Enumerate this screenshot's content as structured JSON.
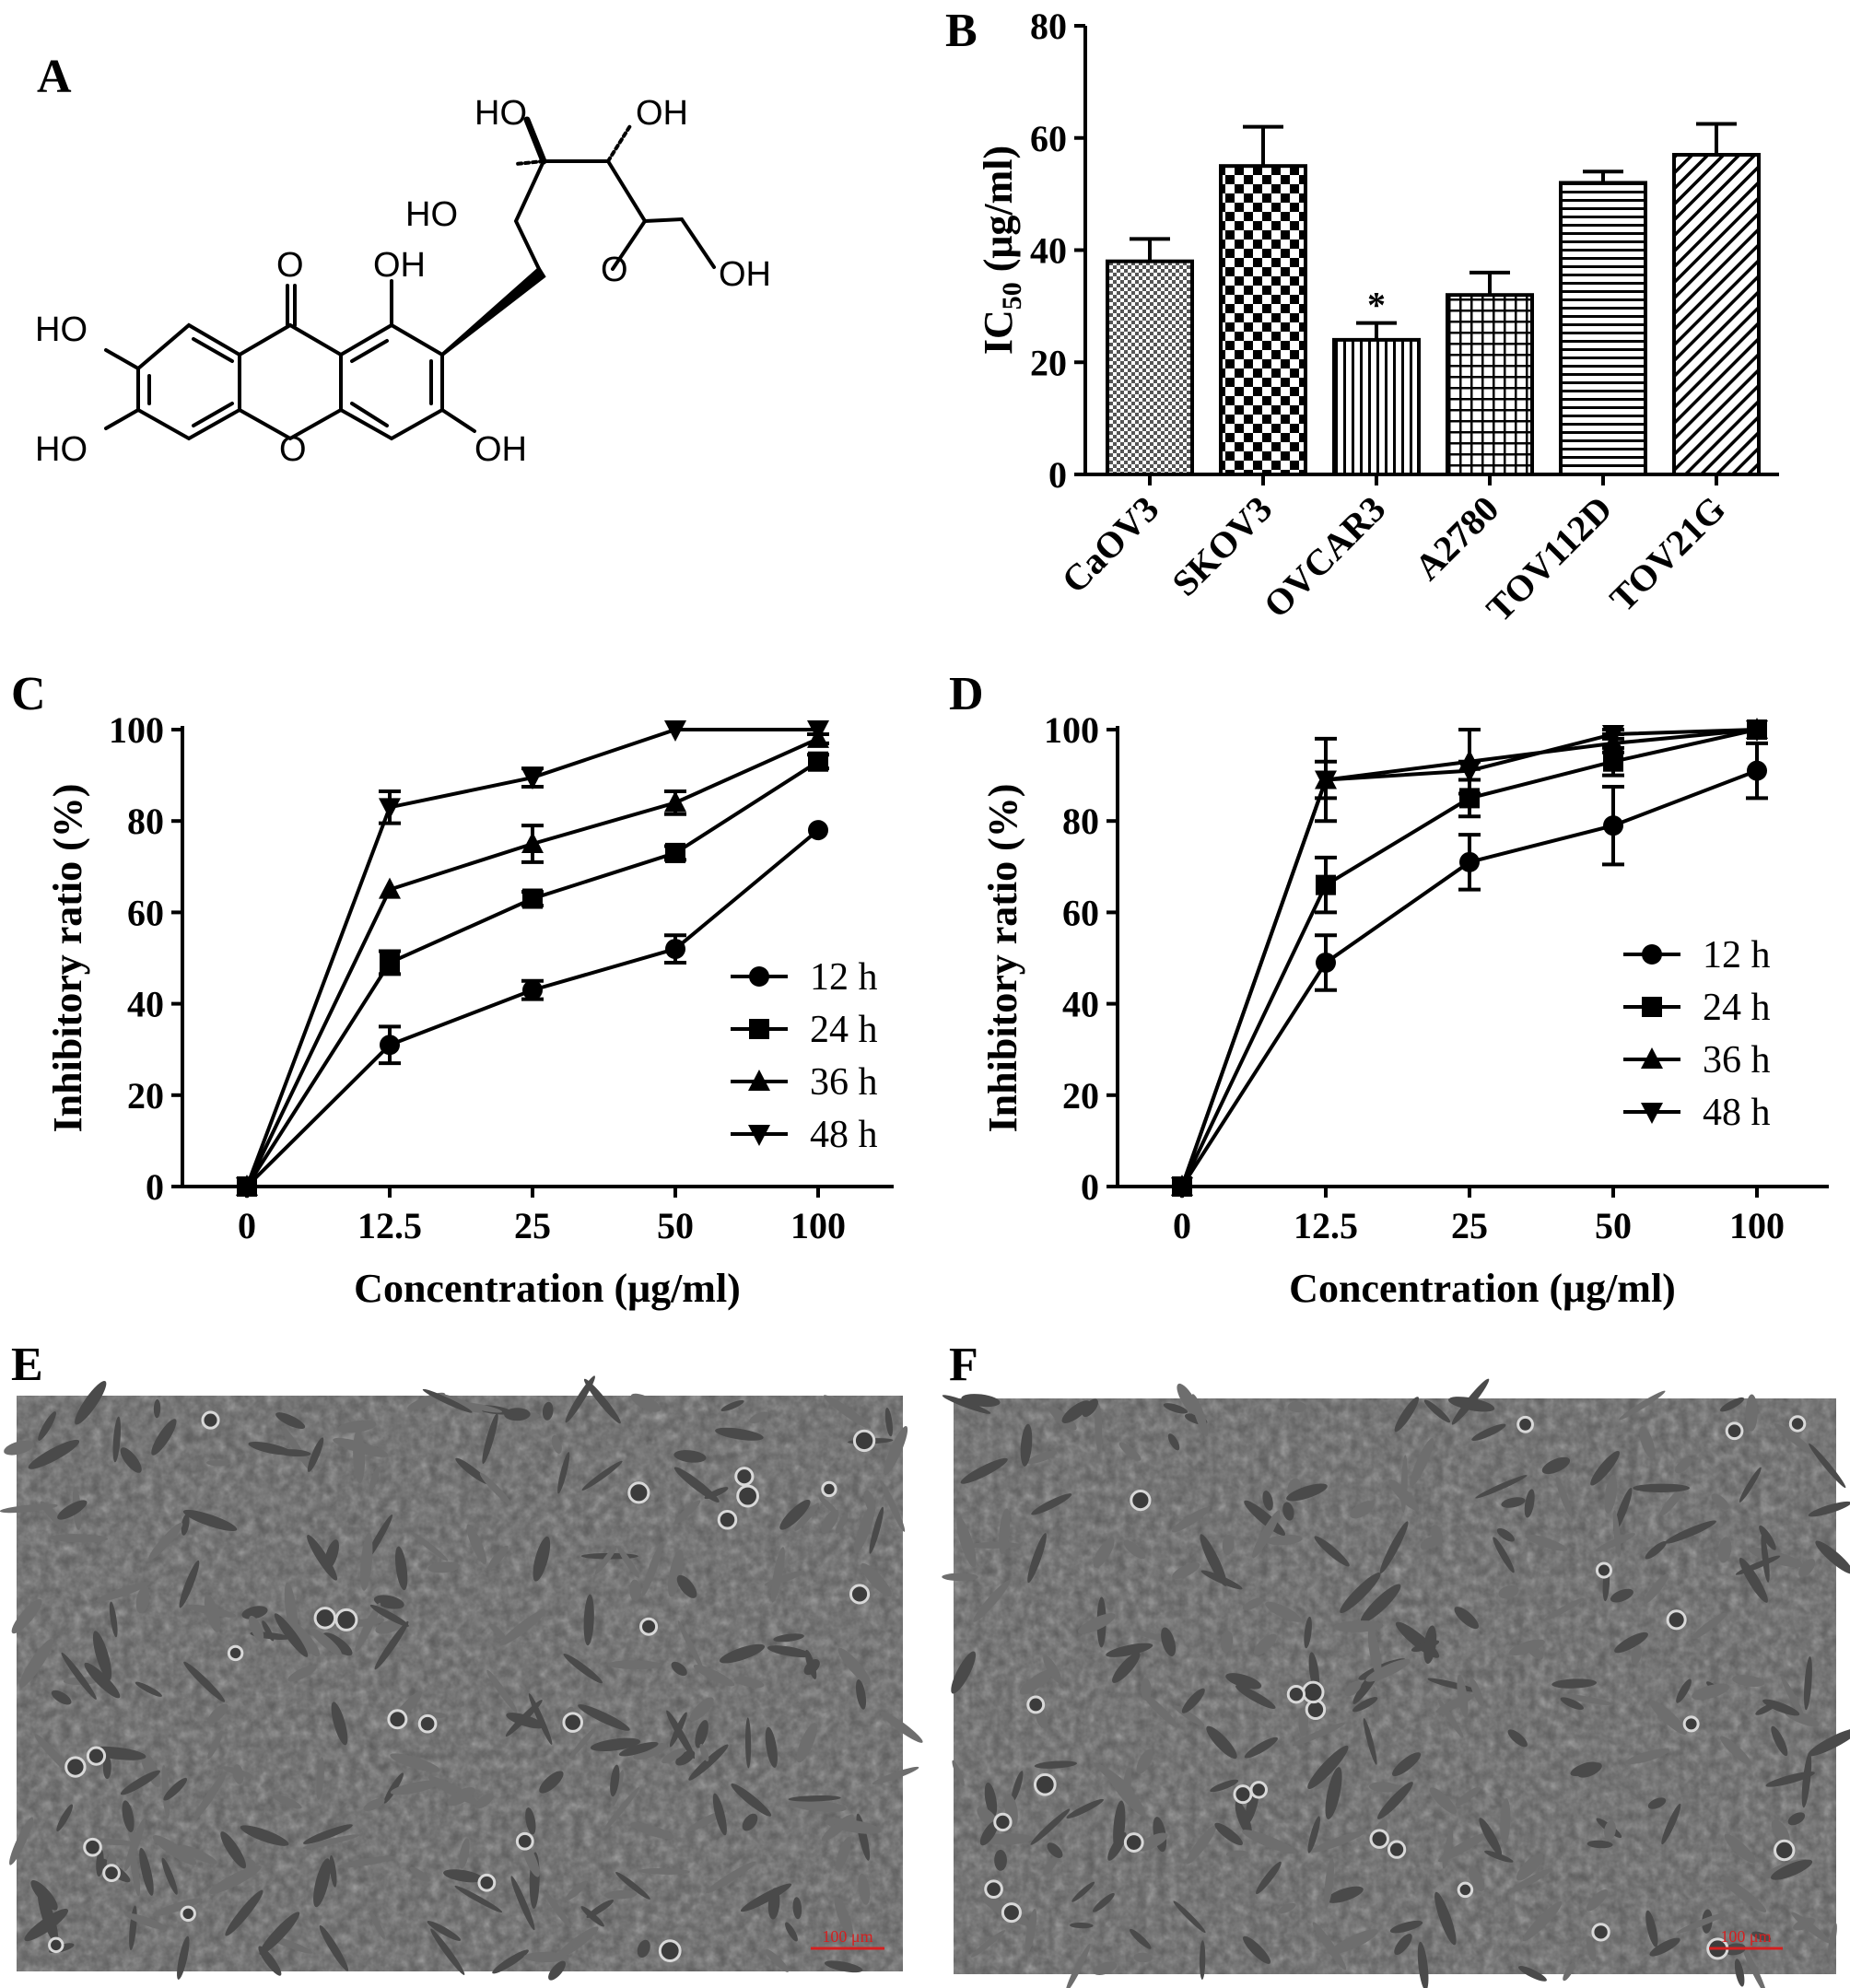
{
  "panels": {
    "a": "A",
    "b": "B",
    "c": "C",
    "d": "D",
    "e": "E",
    "f": "F"
  },
  "chem_labels": {
    "oh_glc_top_left": "HO",
    "oh_glc_top_right": "OH",
    "oh_glc_left": "HO",
    "o_ring": "O",
    "oh_ch2": "OH",
    "carbonyl_o": "O",
    "oh_c1": "OH",
    "oh_c6": "HO",
    "oh_c7": "HO",
    "o_xanthone": "O",
    "oh_c3": "OH"
  },
  "scale_bar_e": "100 μm",
  "scale_bar_f": "100 μm",
  "colors": {
    "micrograph_bg": "#5c5c5c",
    "scale_bar": "#d42020",
    "line": "#000000"
  },
  "chart_data": [
    {
      "panel": "B",
      "type": "bar",
      "title": "",
      "xlabel": "",
      "ylabel_main": "IC",
      "ylabel_sub": "50",
      "ylabel_unit": " (μg/ml)",
      "ylim": [
        0,
        80
      ],
      "yticks": [
        "0",
        "20",
        "40",
        "60",
        "80"
      ],
      "categories": [
        "CaOV3",
        "SKOV3",
        "OVCAR3",
        "A2780",
        "TOV112D",
        "TOV21G"
      ],
      "values": [
        38,
        55,
        24,
        32,
        52,
        57
      ],
      "errors": [
        4,
        7,
        3,
        4,
        2,
        5.5
      ],
      "patterns": [
        "dots",
        "checker",
        "vertical",
        "grid",
        "horizontal",
        "diagonal"
      ],
      "annotations": [
        {
          "category": "OVCAR3",
          "text": "*"
        }
      ]
    },
    {
      "panel": "C",
      "type": "line",
      "title": "",
      "xlabel": "Concentration (μg/ml)",
      "ylabel": "Inhibitory ratio (%)",
      "x": [
        "0",
        "12.5",
        "25",
        "50",
        "100"
      ],
      "ylim": [
        0,
        100
      ],
      "yticks": [
        "0",
        "20",
        "40",
        "60",
        "80",
        "100"
      ],
      "legend_position": "bottom-right",
      "series": [
        {
          "name": "12 h",
          "marker": "circle",
          "values": [
            0,
            31,
            43,
            52,
            78
          ],
          "errors": [
            0,
            4,
            2,
            3,
            0
          ]
        },
        {
          "name": "24 h",
          "marker": "square",
          "values": [
            0,
            49,
            63,
            73,
            93
          ],
          "errors": [
            0,
            2.5,
            1.5,
            1.5,
            1.5
          ]
        },
        {
          "name": "36 h",
          "marker": "triangle-up",
          "values": [
            0,
            65,
            75,
            84,
            98
          ],
          "errors": [
            0,
            0,
            4,
            2.5,
            1
          ]
        },
        {
          "name": "48 h",
          "marker": "triangle-down",
          "values": [
            0,
            83,
            89.5,
            100,
            100
          ],
          "errors": [
            0,
            3.5,
            2,
            0,
            0
          ]
        }
      ]
    },
    {
      "panel": "D",
      "type": "line",
      "title": "",
      "xlabel": "Concentration (μg/ml)",
      "ylabel": "Inhibitory ratio (%)",
      "x": [
        "0",
        "12.5",
        "25",
        "50",
        "100"
      ],
      "ylim": [
        0,
        100
      ],
      "yticks": [
        "0",
        "20",
        "40",
        "60",
        "80",
        "100"
      ],
      "legend_position": "center-right",
      "series": [
        {
          "name": "12 h",
          "marker": "circle",
          "values": [
            0,
            49,
            71,
            79,
            91
          ],
          "errors": [
            0,
            6,
            6,
            8.5,
            6
          ]
        },
        {
          "name": "24 h",
          "marker": "square",
          "values": [
            0,
            66,
            85,
            93,
            100
          ],
          "errors": [
            0,
            6,
            4,
            3,
            0
          ]
        },
        {
          "name": "36 h",
          "marker": "triangle-up",
          "values": [
            0,
            89,
            93,
            97,
            100
          ],
          "errors": [
            0,
            9,
            7,
            2,
            0
          ]
        },
        {
          "name": "48 h",
          "marker": "triangle-down",
          "values": [
            0,
            89,
            91,
            99,
            100
          ],
          "errors": [
            0,
            4,
            2,
            1,
            0
          ]
        }
      ]
    }
  ]
}
